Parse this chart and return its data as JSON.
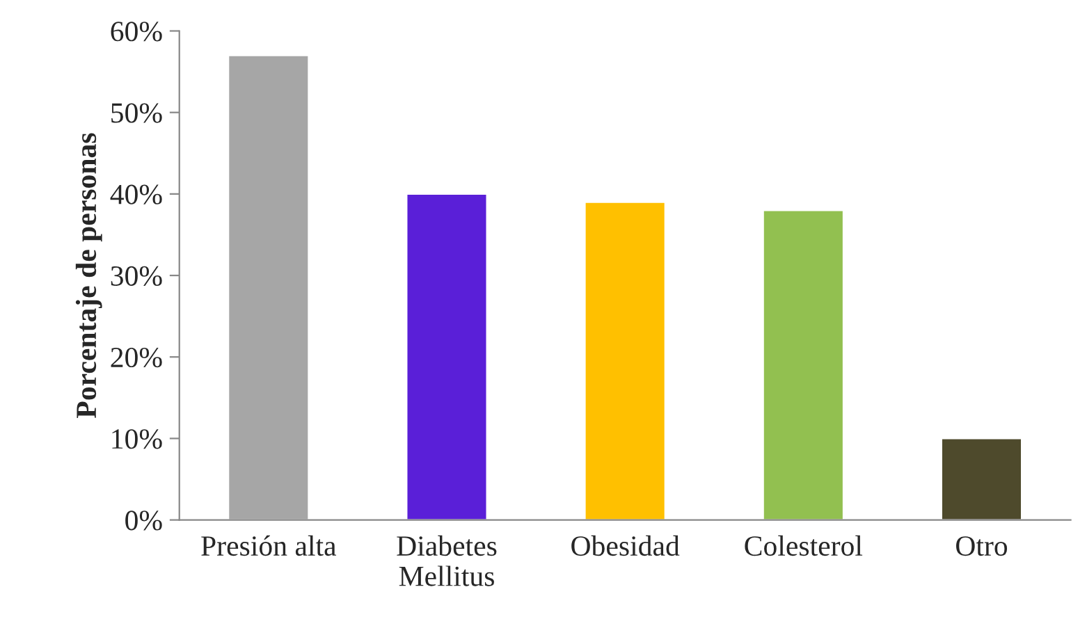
{
  "chart_data": {
    "type": "bar",
    "ylabel": "Porcentaje de personas",
    "categories": [
      "Presión alta",
      "Diabetes\nMellitus",
      "Obesidad",
      "Colesterol",
      "Otro"
    ],
    "values": [
      57,
      40,
      39,
      38,
      10
    ],
    "colors": [
      "#a6a6a6",
      "#5a1fd8",
      "#ffc000",
      "#92c050",
      "#4e4a2c"
    ],
    "ylim": [
      0,
      60
    ],
    "yticks": [
      {
        "value": 0,
        "label": "0%"
      },
      {
        "value": 10,
        "label": "10%"
      },
      {
        "value": 20,
        "label": "20%"
      },
      {
        "value": 30,
        "label": "30%"
      },
      {
        "value": 40,
        "label": "40%"
      },
      {
        "value": 50,
        "label": "50%"
      },
      {
        "value": 60,
        "label": "60%"
      }
    ],
    "grid": false,
    "legend": false
  }
}
